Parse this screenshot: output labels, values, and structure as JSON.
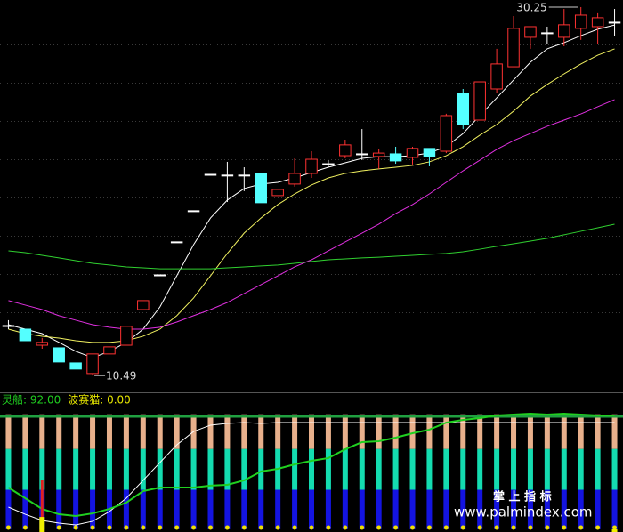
{
  "chart_data": [
    {
      "type": "candlestick",
      "ylim": [
        9.64,
        30.63
      ],
      "grid_levels": [
        28.25,
        26.19,
        24.14,
        22.09,
        20.04,
        17.99,
        15.94,
        13.89,
        11.84
      ],
      "up_color": "#ff3232",
      "down_color": "#54ffff",
      "flat_color": "#ffffff",
      "open": [
        13.17,
        12.98,
        12.12,
        11.98,
        11.17,
        10.6,
        11.65,
        12.12,
        14.03,
        15.89,
        17.66,
        19.33,
        21.28,
        21.24,
        21.24,
        21.33,
        20.14,
        20.76,
        21.33,
        21.85,
        22.28,
        22.38,
        22.24,
        22.38,
        22.19,
        22.67,
        22.52,
        25.62,
        24.19,
        25.86,
        27.05,
        28.63,
        28.87,
        28.63,
        29.11,
        29.2,
        29.44
      ],
      "high": [
        13.46,
        12.98,
        12.51,
        11.98,
        11.17,
        11.65,
        12.03,
        13.13,
        14.51,
        15.89,
        17.66,
        19.33,
        21.28,
        21.95,
        21.66,
        21.33,
        20.47,
        22.14,
        22.52,
        22.05,
        23.14,
        23.71,
        22.62,
        22.76,
        22.76,
        22.67,
        24.53,
        25.86,
        26.24,
        28.01,
        29.77,
        29.2,
        29.2,
        30.15,
        30.25,
        29.92,
        30.15
      ],
      "low": [
        12.98,
        12.36,
        11.93,
        11.22,
        10.84,
        10.49,
        11.65,
        12.12,
        14.03,
        15.89,
        17.66,
        19.33,
        21.28,
        19.8,
        20.38,
        19.76,
        20.14,
        20.62,
        21.09,
        21.66,
        22.14,
        22.05,
        21.57,
        21.85,
        21.81,
        21.71,
        22.42,
        23.71,
        24.19,
        25.62,
        27.05,
        28.01,
        28.25,
        28.15,
        28.49,
        28.25,
        28.72
      ],
      "close": [
        13.17,
        12.36,
        12.27,
        11.22,
        10.84,
        11.65,
        12.03,
        13.13,
        14.51,
        15.89,
        17.66,
        19.33,
        21.28,
        21.24,
        21.24,
        19.76,
        20.47,
        21.33,
        22.09,
        21.85,
        22.86,
        22.38,
        22.42,
        22.0,
        22.67,
        22.24,
        24.43,
        23.95,
        26.24,
        27.2,
        29.11,
        29.2,
        28.87,
        29.3,
        29.82,
        29.68,
        29.44
      ],
      "lines": [
        {
          "color": "#ffffff",
          "values": [
            13.22,
            12.98,
            12.74,
            12.27,
            11.79,
            11.45,
            11.79,
            12.27,
            12.98,
            14.17,
            15.84,
            17.51,
            18.94,
            19.9,
            20.52,
            20.76,
            20.85,
            21.09,
            21.38,
            21.66,
            21.9,
            22.14,
            22.23,
            22.23,
            22.28,
            22.43,
            22.76,
            23.47,
            24.43,
            25.38,
            26.34,
            27.29,
            28.01,
            28.34,
            28.72,
            29.06,
            29.29
          ]
        },
        {
          "color": "#f0f060",
          "values": [
            12.98,
            12.74,
            12.6,
            12.5,
            12.36,
            12.27,
            12.27,
            12.36,
            12.6,
            12.98,
            13.7,
            14.65,
            15.84,
            17.04,
            18.13,
            18.94,
            19.66,
            20.23,
            20.71,
            21.09,
            21.33,
            21.47,
            21.57,
            21.66,
            21.76,
            21.95,
            22.28,
            22.76,
            23.38,
            23.95,
            24.67,
            25.48,
            26.1,
            26.67,
            27.2,
            27.67,
            28.01
          ]
        },
        {
          "color": "#e030e0",
          "values": [
            14.51,
            14.27,
            14.03,
            13.7,
            13.46,
            13.22,
            13.08,
            12.98,
            12.98,
            13.08,
            13.36,
            13.7,
            14.03,
            14.41,
            14.89,
            15.37,
            15.84,
            16.32,
            16.7,
            17.18,
            17.66,
            18.13,
            18.61,
            19.18,
            19.66,
            20.23,
            20.85,
            21.47,
            22.04,
            22.62,
            23.09,
            23.47,
            23.86,
            24.19,
            24.52,
            24.91,
            25.29
          ]
        },
        {
          "color": "#30d030",
          "values": [
            17.18,
            17.08,
            16.94,
            16.8,
            16.65,
            16.51,
            16.42,
            16.32,
            16.27,
            16.22,
            16.22,
            16.22,
            16.22,
            16.27,
            16.32,
            16.37,
            16.42,
            16.51,
            16.61,
            16.7,
            16.75,
            16.8,
            16.84,
            16.89,
            16.94,
            16.99,
            17.04,
            17.13,
            17.27,
            17.42,
            17.56,
            17.7,
            17.85,
            18.04,
            18.23,
            18.42,
            18.61
          ]
        }
      ],
      "high_label": "30.25",
      "low_label": "10.49"
    },
    {
      "type": "indicator",
      "ylim": [
        0,
        100
      ],
      "readouts": [
        {
          "text": "灵船: 92.00",
          "color": "#20d020"
        },
        {
          "text": "波赛猫: 0.00",
          "color": "#e8e800"
        }
      ],
      "stack": [
        {
          "color": "#1414e0",
          "values": [
            32,
            32,
            32,
            32,
            32,
            32,
            32,
            32,
            32,
            32,
            32,
            32,
            32,
            32,
            32,
            32,
            32,
            32,
            32,
            32,
            32,
            32,
            32,
            32,
            32,
            32,
            32,
            32,
            32,
            32,
            32,
            32,
            32,
            32,
            32,
            32,
            32
          ]
        },
        {
          "color": "#14dcb0",
          "values": [
            33,
            33,
            33,
            33,
            33,
            33,
            33,
            33,
            33,
            33,
            33,
            33,
            33,
            33,
            33,
            33,
            33,
            33,
            33,
            33,
            33,
            33,
            33,
            33,
            33,
            33,
            33,
            33,
            33,
            33,
            33,
            33,
            33,
            33,
            33,
            33,
            33
          ]
        },
        {
          "color": "#e8b08c",
          "values": [
            28,
            28,
            28,
            28,
            28,
            28,
            28,
            28,
            28,
            28,
            28,
            28,
            28,
            28,
            28,
            28,
            28,
            28,
            28,
            28,
            28,
            28,
            28,
            28,
            28,
            28,
            28,
            28,
            28,
            28,
            28,
            28,
            28,
            28,
            28,
            28,
            28
          ]
        }
      ],
      "reference_line": {
        "value": 91.4,
        "color": "#20a040"
      },
      "lines": [
        {
          "color": "#ffffff",
          "values": [
            18.0,
            12.2,
            7.2,
            5.0,
            3.6,
            6.5,
            14.4,
            25.2,
            39.6,
            54.0,
            68.3,
            79.1,
            84.2,
            85.6,
            86.3,
            85.6,
            86.3,
            86.3,
            86.3,
            86.3,
            86.3,
            86.3,
            86.3,
            86.3,
            86.3,
            86.3,
            86.3,
            86.3,
            86.3,
            86.3,
            86.3,
            86.3,
            86.3,
            86.3,
            86.3,
            86.3,
            86.3
          ]
        },
        {
          "color": "#20d020",
          "values": [
            33.8,
            25.2,
            16.5,
            12.2,
            10.8,
            12.9,
            16.5,
            21.6,
            30.9,
            33.8,
            33.8,
            33.8,
            35.3,
            36.0,
            39.6,
            46.8,
            48.9,
            52.5,
            55.4,
            57.6,
            64.7,
            70.5,
            71.2,
            74.1,
            77.7,
            80.6,
            86.3,
            88.5,
            89.9,
            92.1,
            92.8,
            93.5,
            92.8,
            93.5,
            92.8,
            92.1,
            92.0
          ]
        }
      ],
      "spikes": [
        {
          "color": "#e02020",
          "values": [
            null,
            null,
            39.6,
            null,
            null,
            null,
            null,
            null,
            null,
            null,
            null,
            null,
            null,
            null,
            null,
            null,
            null,
            null,
            null,
            null,
            null,
            null,
            null,
            null,
            null,
            null,
            null,
            null,
            null,
            null,
            null,
            null,
            null,
            null,
            null,
            null,
            null
          ]
        },
        {
          "color": "#f0f000",
          "values": [
            null,
            null,
            10,
            null,
            null,
            null,
            null,
            null,
            null,
            null,
            null,
            null,
            null,
            null,
            null,
            null,
            null,
            null,
            null,
            null,
            null,
            null,
            null,
            null,
            null,
            null,
            null,
            null,
            null,
            null,
            null,
            null,
            null,
            null,
            null,
            null,
            0
          ]
        }
      ]
    }
  ],
  "watermark": {
    "title": "掌 上 指 标",
    "url": "www.palmindex.com"
  }
}
